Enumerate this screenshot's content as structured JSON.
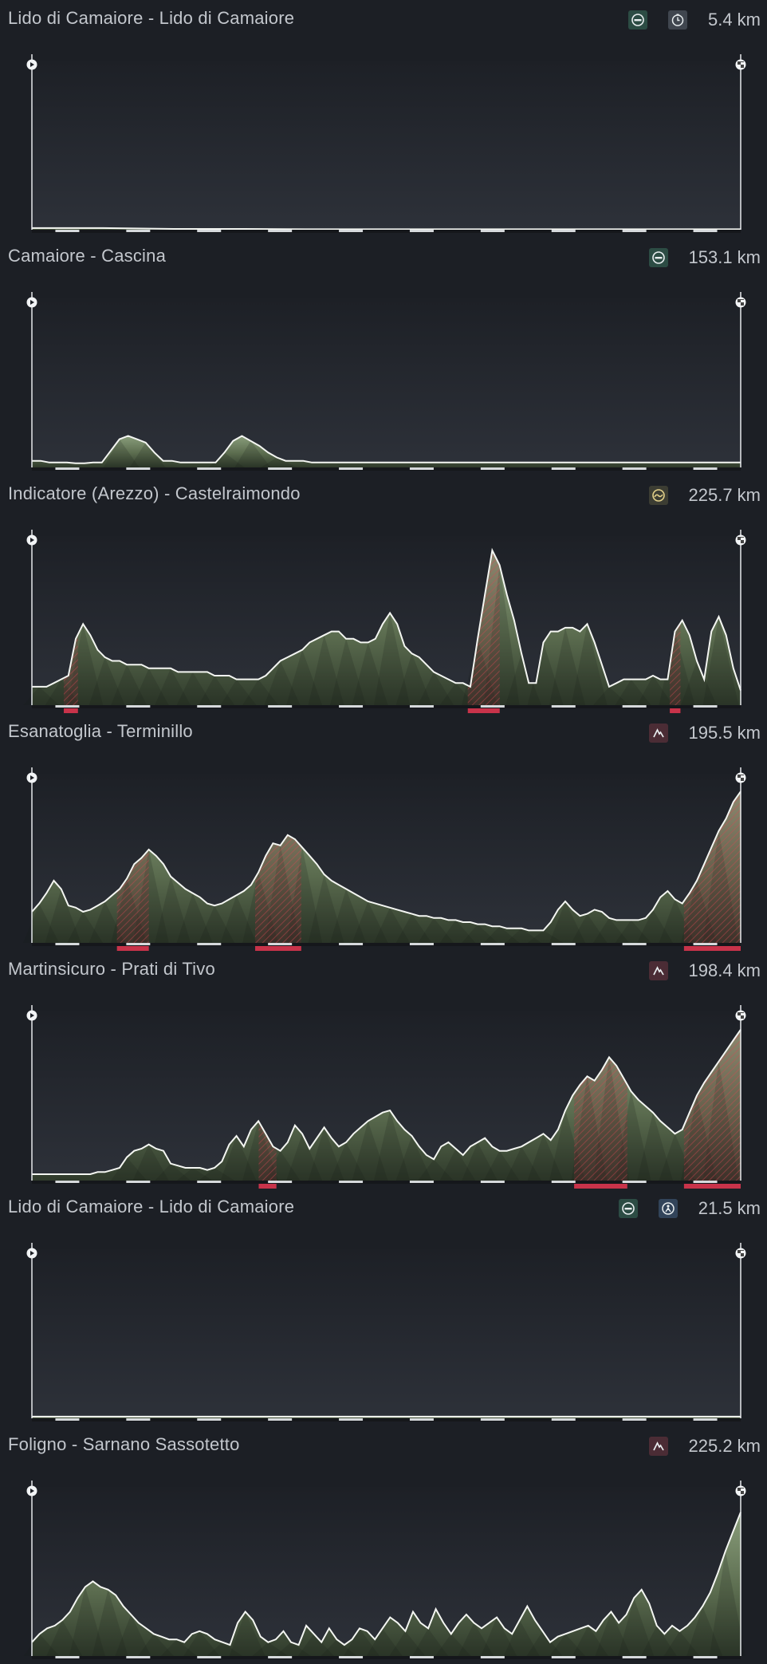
{
  "stages": [
    {
      "title": "Lido di Camaiore - Lido di Camaiore",
      "distance": "5.4 km",
      "icons": [
        "flat-stage-icon",
        "individual-time-trial-icon"
      ],
      "profile": [
        1,
        1,
        0.5,
        0.5,
        0.3,
        0.3,
        0.3,
        0.3,
        0.3,
        0.3,
        0.3
      ],
      "climbs": [],
      "max_alt": 100
    },
    {
      "title": "Camaiore - Cascina",
      "distance": "153.1 km",
      "icons": [
        "flat-stage-icon"
      ],
      "profile": [
        4,
        4,
        3,
        3,
        3,
        2.5,
        2.5,
        3,
        3,
        10,
        17,
        19,
        17,
        15,
        9,
        4,
        4,
        3,
        3,
        3,
        3,
        3,
        9,
        16,
        19,
        16,
        13,
        9,
        6,
        4,
        4,
        4,
        3,
        3,
        3,
        3,
        3,
        3,
        3,
        3,
        3,
        3,
        3,
        3,
        3,
        3,
        3,
        3,
        3,
        3,
        3,
        3,
        3,
        3,
        3,
        3,
        3,
        3,
        3,
        3,
        3,
        3,
        3,
        3,
        3,
        3,
        3,
        3,
        3,
        3,
        3,
        3,
        3,
        3,
        3,
        3,
        3,
        3,
        3,
        3,
        3,
        3
      ],
      "climbs": [],
      "max_alt": 100
    },
    {
      "title": "Indicatore (Arezzo) - Castelraimondo",
      "distance": "225.7 km",
      "icons": [
        "hilly-stage-icon"
      ],
      "profile": [
        5,
        5,
        5,
        6,
        7,
        8,
        18,
        22,
        19,
        15,
        13,
        12,
        12,
        11,
        11,
        11,
        10,
        10,
        10,
        10,
        9,
        9,
        9,
        9,
        9,
        8,
        8,
        8,
        7,
        7,
        7,
        7,
        8,
        10,
        12,
        13,
        14,
        15,
        17,
        18,
        19,
        20,
        20,
        18,
        18,
        17,
        17,
        18,
        22,
        25,
        22,
        16,
        14,
        13,
        11,
        9,
        8,
        7,
        6,
        6,
        5,
        18,
        30,
        42,
        38,
        30,
        23,
        14,
        6,
        6,
        17,
        20,
        20,
        21,
        21,
        20,
        22,
        17,
        11,
        5,
        6,
        7,
        7,
        7,
        7,
        8,
        7,
        7,
        20,
        23,
        19,
        12,
        7,
        20,
        24,
        19,
        10,
        4
      ],
      "climbs": [
        [
          0.045,
          0.065
        ],
        [
          0.615,
          0.66
        ],
        [
          0.9,
          0.915
        ]
      ],
      "max_alt": 45
    },
    {
      "title": "Esanatoglia - Terminillo",
      "distance": "195.5 km",
      "icons": [
        "mountain-stage-icon"
      ],
      "profile": [
        15,
        19,
        24,
        30,
        26,
        18,
        17,
        15,
        16,
        18,
        20,
        23,
        26,
        31,
        38,
        41,
        45,
        42,
        38,
        32,
        29,
        26,
        24,
        22,
        19,
        18,
        19,
        21,
        23,
        25,
        28,
        34,
        42,
        48,
        47,
        52,
        50,
        46,
        42,
        38,
        33,
        30,
        28,
        26,
        24,
        22,
        20,
        19,
        18,
        17,
        16,
        15,
        14,
        13,
        13,
        12,
        12,
        11,
        11,
        10,
        10,
        9,
        9,
        8,
        8,
        7,
        7,
        7,
        6,
        6,
        6,
        10,
        16,
        20,
        16,
        13,
        14,
        16,
        15,
        12,
        11,
        11,
        11,
        11,
        12,
        16,
        22,
        25,
        21,
        19,
        24,
        30,
        38,
        46,
        54,
        60,
        68,
        73
      ],
      "climbs": [
        [
          0.12,
          0.165
        ],
        [
          0.315,
          0.38
        ],
        [
          0.92,
          1.0
        ]
      ],
      "max_alt": 80
    },
    {
      "title": "Martinsicuro - Prati di Tivo",
      "distance": "198.4 km",
      "icons": [
        "mountain-stage-icon"
      ],
      "profile": [
        3,
        3,
        3,
        3,
        3,
        3,
        3,
        3,
        3,
        4,
        4,
        5,
        6,
        11,
        14,
        15,
        17,
        15,
        14,
        8,
        7,
        6,
        6,
        6,
        5,
        6,
        9,
        17,
        21,
        16,
        24,
        28,
        22,
        16,
        14,
        18,
        26,
        22,
        15,
        20,
        25,
        20,
        16,
        18,
        22,
        25,
        28,
        30,
        32,
        33,
        28,
        24,
        21,
        16,
        12,
        10,
        16,
        18,
        15,
        12,
        16,
        18,
        20,
        16,
        14,
        14,
        15,
        16,
        18,
        20,
        22,
        19,
        24,
        33,
        40,
        45,
        49,
        47,
        52,
        58,
        54,
        48,
        42,
        38,
        35,
        32,
        28,
        25,
        22,
        24,
        32,
        40,
        46,
        51,
        56,
        61,
        66,
        71
      ],
      "climbs": [
        [
          0.32,
          0.345
        ],
        [
          0.765,
          0.84
        ],
        [
          0.92,
          1.0
        ]
      ],
      "max_alt": 78
    },
    {
      "title": "Lido di Camaiore - Lido di Camaiore",
      "distance": "21.5 km",
      "icons": [
        "flat-stage-icon",
        "team-time-trial-icon"
      ],
      "profile": [
        1,
        1,
        1,
        1,
        1,
        1,
        1,
        1,
        1,
        1,
        1,
        1,
        1,
        1,
        1,
        1,
        1,
        1,
        1,
        1,
        1,
        1,
        1,
        1,
        1,
        1,
        1,
        1,
        1,
        1,
        1,
        1,
        1,
        1,
        1,
        1
      ],
      "climbs": [],
      "max_alt": 100
    },
    {
      "title": "Foligno - Sarnano Sassotetto",
      "distance": "225.2 km",
      "icons": [
        "mountain-stage-icon"
      ],
      "profile": [
        5,
        8,
        10,
        11,
        13,
        16,
        21,
        25,
        27,
        25,
        24,
        22,
        18,
        15,
        12,
        10,
        8,
        7,
        6,
        6,
        5,
        8,
        9,
        8,
        6,
        5,
        4,
        12,
        16,
        13,
        7,
        5,
        6,
        9,
        5,
        4,
        11,
        8,
        5,
        10,
        6,
        4,
        6,
        10,
        9,
        6,
        10,
        14,
        12,
        9,
        16,
        12,
        10,
        17,
        12,
        8,
        12,
        15,
        12,
        10,
        12,
        14,
        10,
        8,
        13,
        18,
        13,
        9,
        5,
        7,
        8,
        9,
        10,
        11,
        9,
        13,
        16,
        12,
        15,
        21,
        24,
        19,
        11,
        8,
        11,
        9,
        11,
        14,
        18,
        23,
        30,
        38,
        45,
        52
      ],
      "climbs": [],
      "max_alt": 60
    }
  ]
}
